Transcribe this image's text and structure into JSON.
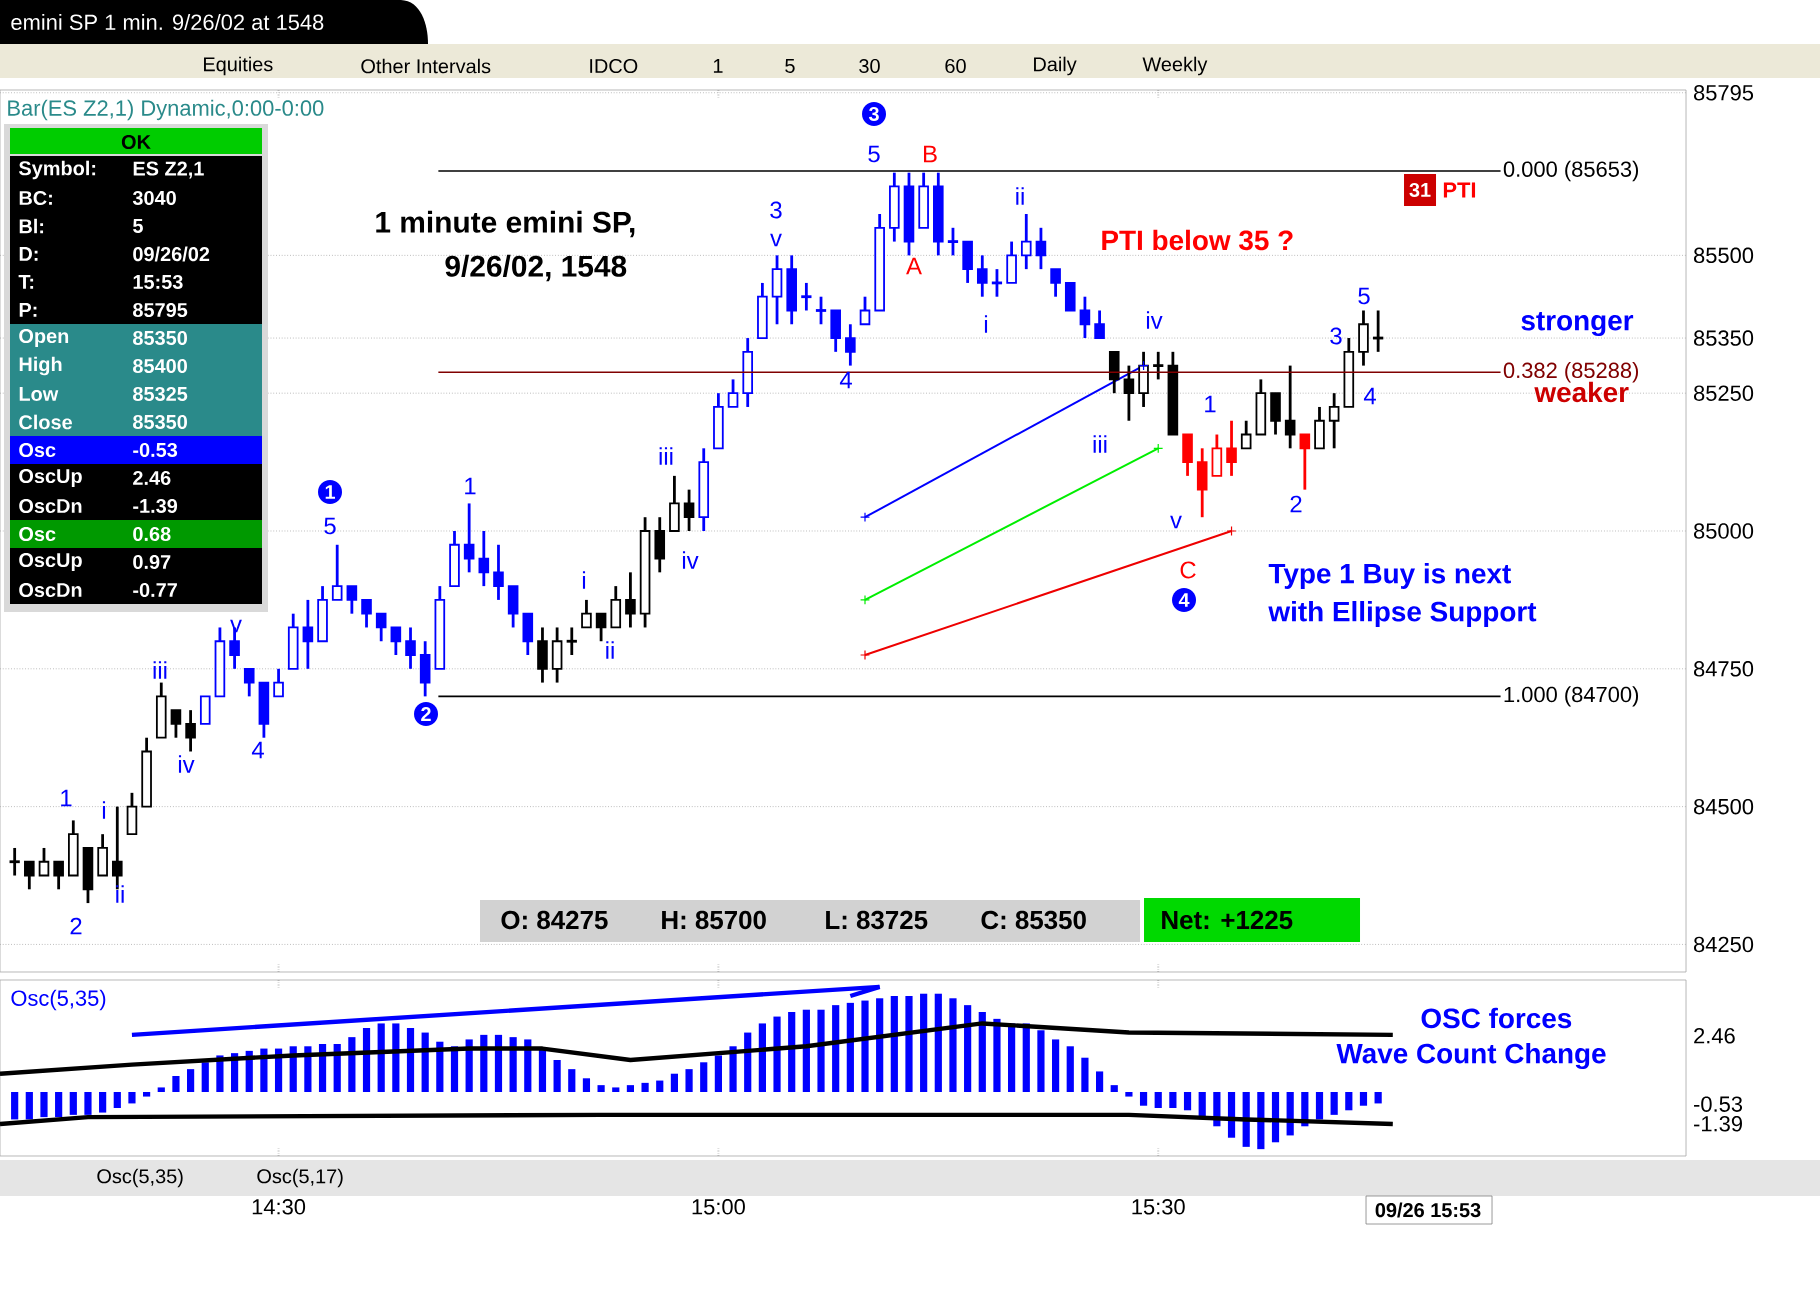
{
  "chart_data": [
    {
      "type": "candlestick",
      "title": "emini SP 1 min. 9/26/02 at 1548",
      "subtitle": "Bar(ES Z2,1) Dynamic,0:00-0:00",
      "x": [
        "--09-26T14:12",
        "--09-26T14:13",
        "--09-26T14:14",
        "--09-26T14:15",
        "--09-26T14:16",
        "--09-26T14:17",
        "--09-26T14:18",
        "--09-26T14:19",
        "--09-26T14:20",
        "--09-26T14:21",
        "--09-26T14:22",
        "--09-26T14:23",
        "--09-26T14:24",
        "--09-26T14:25",
        "--09-26T14:26",
        "--09-26T14:27",
        "--09-26T14:28",
        "--09-26T14:29",
        "--09-26T14:30",
        "--09-26T14:31",
        "--09-26T14:32",
        "--09-26T14:33",
        "--09-26T14:34",
        "--09-26T14:35",
        "--09-26T14:36",
        "--09-26T14:37",
        "--09-26T14:38",
        "--09-26T14:39",
        "--09-26T14:40",
        "--09-26T14:41",
        "--09-26T14:42",
        "--09-26T14:43",
        "--09-26T14:44",
        "--09-26T14:45",
        "--09-26T14:46",
        "--09-26T14:47",
        "--09-26T14:48",
        "--09-26T14:49",
        "--09-26T14:50",
        "--09-26T14:51",
        "--09-26T14:52",
        "--09-26T14:53",
        "--09-26T14:54",
        "--09-26T14:55",
        "--09-26T14:56",
        "--09-26T14:57",
        "--09-26T14:58",
        "--09-26T14:59",
        "--09-26T15:00",
        "--09-26T15:01",
        "--09-26T15:02",
        "--09-26T15:03",
        "--09-26T15:04",
        "--09-26T15:05",
        "--09-26T15:06",
        "--09-26T15:07",
        "--09-26T15:08",
        "--09-26T15:09",
        "--09-26T15:10",
        "--09-26T15:11",
        "--09-26T15:12",
        "--09-26T15:13",
        "--09-26T15:14",
        "--09-26T15:15",
        "--09-26T15:16",
        "--09-26T15:17",
        "--09-26T15:18",
        "--09-26T15:19",
        "--09-26T15:20",
        "--09-26T15:21",
        "--09-26T15:22",
        "--09-26T15:23",
        "--09-26T15:24",
        "--09-26T15:25",
        "--09-26T15:26",
        "--09-26T15:27",
        "--09-26T15:28",
        "--09-26T15:29",
        "--09-26T15:30",
        "--09-26T15:31",
        "--09-26T15:32",
        "--09-26T15:33",
        "--09-26T15:34",
        "--09-26T15:35",
        "--09-26T15:36",
        "--09-26T15:37",
        "--09-26T15:38",
        "--09-26T15:39",
        "--09-26T15:40",
        "--09-26T15:41",
        "--09-26T15:42",
        "--09-26T15:43",
        "--09-26T15:44",
        "--09-26T15:45"
      ],
      "ohlc": [
        [
          84400,
          84425,
          84375,
          84400
        ],
        [
          84400,
          84400,
          84350,
          84375
        ],
        [
          84375,
          84425,
          84375,
          84400
        ],
        [
          84400,
          84400,
          84350,
          84375
        ],
        [
          84375,
          84475,
          84375,
          84450
        ],
        [
          84425,
          84425,
          84325,
          84350
        ],
        [
          84375,
          84450,
          84375,
          84425
        ],
        [
          84400,
          84500,
          84350,
          84375
        ],
        [
          84450,
          84525,
          84450,
          84500
        ],
        [
          84500,
          84625,
          84500,
          84600
        ],
        [
          84625,
          84725,
          84625,
          84700
        ],
        [
          84675,
          84675,
          84625,
          84650
        ],
        [
          84650,
          84675,
          84600,
          84625
        ],
        [
          84650,
          84700,
          84650,
          84700
        ],
        [
          84700,
          84825,
          84700,
          84800
        ],
        [
          84800,
          84825,
          84750,
          84775
        ],
        [
          84750,
          84750,
          84700,
          84725
        ],
        [
          84725,
          84725,
          84625,
          84650
        ],
        [
          84700,
          84750,
          84700,
          84725
        ],
        [
          84750,
          84850,
          84750,
          84825
        ],
        [
          84825,
          84875,
          84750,
          84800
        ],
        [
          84800,
          84900,
          84800,
          84875
        ],
        [
          84875,
          84975,
          84875,
          84900
        ],
        [
          84900,
          84900,
          84850,
          84875
        ],
        [
          84875,
          84875,
          84825,
          84850
        ],
        [
          84850,
          84850,
          84800,
          84825
        ],
        [
          84825,
          84825,
          84775,
          84800
        ],
        [
          84800,
          84825,
          84750,
          84775
        ],
        [
          84775,
          84800,
          84700,
          84725
        ],
        [
          84750,
          84900,
          84750,
          84875
        ],
        [
          84900,
          85000,
          84900,
          84975
        ],
        [
          84975,
          85050,
          84925,
          84950
        ],
        [
          84950,
          85000,
          84900,
          84925
        ],
        [
          84925,
          84975,
          84875,
          84900
        ],
        [
          84900,
          84900,
          84825,
          84850
        ],
        [
          84850,
          84850,
          84775,
          84800
        ],
        [
          84800,
          84825,
          84725,
          84750
        ],
        [
          84750,
          84825,
          84725,
          84800
        ],
        [
          84800,
          84825,
          84775,
          84800
        ],
        [
          84825,
          84875,
          84825,
          84850
        ],
        [
          84850,
          84850,
          84800,
          84825
        ],
        [
          84825,
          84900,
          84825,
          84875
        ],
        [
          84875,
          84925,
          84825,
          84850
        ],
        [
          84850,
          85025,
          84825,
          85000
        ],
        [
          85000,
          85025,
          84925,
          84950
        ],
        [
          85000,
          85100,
          85000,
          85050
        ],
        [
          85050,
          85075,
          85000,
          85025
        ],
        [
          85025,
          85150,
          85000,
          85125
        ],
        [
          85150,
          85250,
          85150,
          85225
        ],
        [
          85225,
          85275,
          85225,
          85250
        ],
        [
          85250,
          85350,
          85225,
          85325
        ],
        [
          85350,
          85450,
          85350,
          85425
        ],
        [
          85425,
          85500,
          85375,
          85475
        ],
        [
          85475,
          85500,
          85375,
          85400
        ],
        [
          85425,
          85450,
          85400,
          85425
        ],
        [
          85400,
          85425,
          85375,
          85400
        ],
        [
          85400,
          85400,
          85325,
          85350
        ],
        [
          85350,
          85375,
          85300,
          85325
        ],
        [
          85375,
          85425,
          85375,
          85400
        ],
        [
          85400,
          85575,
          85400,
          85550
        ],
        [
          85550,
          85650,
          85525,
          85625
        ],
        [
          85625,
          85650,
          85500,
          85525
        ],
        [
          85550,
          85650,
          85550,
          85625
        ],
        [
          85625,
          85650,
          85500,
          85525
        ],
        [
          85525,
          85550,
          85500,
          85525
        ],
        [
          85525,
          85525,
          85450,
          85475
        ],
        [
          85475,
          85500,
          85425,
          85450
        ],
        [
          85450,
          85475,
          85425,
          85450
        ],
        [
          85450,
          85525,
          85450,
          85500
        ],
        [
          85500,
          85575,
          85475,
          85525
        ],
        [
          85525,
          85550,
          85475,
          85500
        ],
        [
          85475,
          85475,
          85425,
          85450
        ],
        [
          85450,
          85450,
          85400,
          85400
        ],
        [
          85400,
          85425,
          85350,
          85375
        ],
        [
          85375,
          85400,
          85350,
          85350
        ],
        [
          85325,
          85325,
          85250,
          85275
        ],
        [
          85275,
          85300,
          85200,
          85250
        ],
        [
          85250,
          85325,
          85225,
          85300
        ],
        [
          85300,
          85325,
          85275,
          85300
        ],
        [
          85300,
          85325,
          85175,
          85175
        ],
        [
          85175,
          85175,
          85100,
          85125
        ],
        [
          85125,
          85150,
          85025,
          85075
        ],
        [
          85100,
          85175,
          85100,
          85150
        ],
        [
          85150,
          85200,
          85100,
          85125
        ],
        [
          85150,
          85200,
          85150,
          85175
        ],
        [
          85175,
          85275,
          85175,
          85250
        ],
        [
          85250,
          85250,
          85175,
          85200
        ],
        [
          85200,
          85300,
          85150,
          85175
        ],
        [
          85175,
          85175,
          85075,
          85150
        ],
        [
          85150,
          85225,
          85150,
          85200
        ],
        [
          85200,
          85250,
          85150,
          85225
        ],
        [
          85225,
          85350,
          85225,
          85325
        ],
        [
          85325,
          85400,
          85300,
          85375
        ],
        [
          85350,
          85400,
          85325,
          85350
        ]
      ],
      "colors": [
        "#000000",
        "#000000",
        "#000000",
        "#000000",
        "#000000",
        "#000000",
        "#000000",
        "#000000",
        "#000000",
        "#000000",
        "#000000",
        "#000000",
        "#000000",
        "#0000ff",
        "#0000ff",
        "#0000ff",
        "#0000ff",
        "#0000ff",
        "#0000ff",
        "#0000ff",
        "#0000ff",
        "#0000ff",
        "#0000ff",
        "#0000ff",
        "#0000ff",
        "#0000ff",
        "#0000ff",
        "#0000ff",
        "#0000ff",
        "#0000ff",
        "#0000ff",
        "#0000ff",
        "#0000ff",
        "#0000ff",
        "#0000ff",
        "#0000ff",
        "#000000",
        "#000000",
        "#000000",
        "#000000",
        "#000000",
        "#000000",
        "#000000",
        "#000000",
        "#000000",
        "#000000",
        "#000000",
        "#0000ff",
        "#0000ff",
        "#0000ff",
        "#0000ff",
        "#0000ff",
        "#0000ff",
        "#0000ff",
        "#0000ff",
        "#0000ff",
        "#0000ff",
        "#0000ff",
        "#0000ff",
        "#0000ff",
        "#0000ff",
        "#0000ff",
        "#0000ff",
        "#0000ff",
        "#0000ff",
        "#0000ff",
        "#0000ff",
        "#0000ff",
        "#0000ff",
        "#0000ff",
        "#0000ff",
        "#0000ff",
        "#0000ff",
        "#0000ff",
        "#0000ff",
        "#000000",
        "#000000",
        "#000000",
        "#000000",
        "#000000",
        "#ff0000",
        "#ff0000",
        "#ff0000",
        "#ff0000",
        "#000000",
        "#000000",
        "#000000",
        "#000000",
        "#ff0000",
        "#000000",
        "#000000",
        "#000000",
        "#000000",
        "#000000"
      ],
      "series": [
        {
          "type": "line",
          "color": "#0000ff",
          "marker": "cross",
          "x": [
            "--09-26T15:10",
            "--09-26T15:29"
          ],
          "values": [
            85025,
            85300
          ]
        },
        {
          "type": "line",
          "color": "#00ee00",
          "marker": "cross",
          "x": [
            "--09-26T15:10",
            "--09-26T15:30"
          ],
          "values": [
            84875,
            85150
          ]
        },
        {
          "type": "line",
          "color": "#ee0000",
          "marker": "cross",
          "x": [
            "--09-26T15:10",
            "--09-26T15:35"
          ],
          "values": [
            84775,
            85000
          ]
        }
      ],
      "xlim": [
        "--09-26T14:11",
        "--09-26T16:06"
      ],
      "ylim": [
        84200,
        85800
      ],
      "xticks": [
        "--09-26T14:30",
        "--09-26T15:00",
        "--09-26T15:30"
      ],
      "yticks": [
        84250,
        84500,
        84750,
        85000,
        85250,
        85350,
        85500,
        85795
      ],
      "tick_labels": "y",
      "grid": "y",
      "ref_lines": [
        {
          "axis": "y",
          "value": 85653,
          "label": "0.000 (85653)",
          "color": "#000000"
        },
        {
          "axis": "y",
          "value": 85288,
          "label": "0.382 (85288)",
          "color": "#800000"
        },
        {
          "axis": "y",
          "value": 84700,
          "label": "1.000 (84700)",
          "color": "#000000"
        }
      ],
      "annotations": [
        "1",
        "2",
        "i",
        "ii",
        "iii",
        "iv",
        "v",
        "4",
        "5",
        "1",
        "2",
        "1",
        "i",
        "ii",
        "iii",
        "iv",
        "3",
        "v",
        "4",
        "3",
        "5",
        "B",
        "A",
        "i",
        "ii",
        "iii",
        "iv",
        "v",
        "C",
        "4",
        "1",
        "2",
        "3",
        "4",
        "5",
        "1 minute emini SP,",
        "9/26/02,  1548",
        "PTI below 35 ?",
        "31",
        "PTI",
        "stronger",
        "weaker",
        "Type 1 Buy is next",
        "with Ellipse Support",
        "O: 84275",
        "H: 85700",
        "L: 83725",
        "C: 85350",
        "Net: +1225",
        "OK",
        "Symbol:",
        "ES Z2,1",
        "BC:",
        "3040",
        "Bl:",
        "5",
        "D:",
        "09/26/02",
        "T:",
        "15:53",
        "P:",
        "85795",
        "Open",
        "85350",
        "High",
        "85400",
        "Low",
        "85325",
        "Close",
        "85350",
        "Osc",
        "-0.53",
        "OscUp",
        "2.46",
        "OscDn",
        "-1.39",
        "Osc",
        "0.68",
        "OscUp",
        "0.97",
        "OscDn",
        "-0.77",
        "Equities",
        "Other Intervals",
        "IDCO",
        "1",
        "5",
        "30",
        "60",
        "Daily",
        "Weekly"
      ]
    },
    {
      "type": "bar",
      "title": "Osc(5,35)",
      "x": [
        "--09-26T14:12",
        "--09-26T14:13",
        "--09-26T14:14",
        "--09-26T14:15",
        "--09-26T14:16",
        "--09-26T14:17",
        "--09-26T14:18",
        "--09-26T14:19",
        "--09-26T14:20",
        "--09-26T14:21",
        "--09-26T14:22",
        "--09-26T14:23",
        "--09-26T14:24",
        "--09-26T14:25",
        "--09-26T14:26",
        "--09-26T14:27",
        "--09-26T14:28",
        "--09-26T14:29",
        "--09-26T14:30",
        "--09-26T14:31",
        "--09-26T14:32",
        "--09-26T14:33",
        "--09-26T14:34",
        "--09-26T14:35",
        "--09-26T14:36",
        "--09-26T14:37",
        "--09-26T14:38",
        "--09-26T14:39",
        "--09-26T14:40",
        "--09-26T14:41",
        "--09-26T14:42",
        "--09-26T14:43",
        "--09-26T14:44",
        "--09-26T14:45",
        "--09-26T14:46",
        "--09-26T14:47",
        "--09-26T14:48",
        "--09-26T14:49",
        "--09-26T14:50",
        "--09-26T14:51",
        "--09-26T14:52",
        "--09-26T14:53",
        "--09-26T14:54",
        "--09-26T14:55",
        "--09-26T14:56",
        "--09-26T14:57",
        "--09-26T14:58",
        "--09-26T14:59",
        "--09-26T15:00",
        "--09-26T15:01",
        "--09-26T15:02",
        "--09-26T15:03",
        "--09-26T15:04",
        "--09-26T15:05",
        "--09-26T15:06",
        "--09-26T15:07",
        "--09-26T15:08",
        "--09-26T15:09",
        "--09-26T15:10",
        "--09-26T15:11",
        "--09-26T15:12",
        "--09-26T15:13",
        "--09-26T15:14",
        "--09-26T15:15",
        "--09-26T15:16",
        "--09-26T15:17",
        "--09-26T15:18",
        "--09-26T15:19",
        "--09-26T15:20",
        "--09-26T15:21",
        "--09-26T15:22",
        "--09-26T15:23",
        "--09-26T15:24",
        "--09-26T15:25",
        "--09-26T15:26",
        "--09-26T15:27",
        "--09-26T15:28",
        "--09-26T15:29",
        "--09-26T15:30",
        "--09-26T15:31",
        "--09-26T15:32",
        "--09-26T15:33",
        "--09-26T15:34",
        "--09-26T15:35",
        "--09-26T15:36",
        "--09-26T15:37",
        "--09-26T15:38",
        "--09-26T15:39",
        "--09-26T15:40",
        "--09-26T15:41",
        "--09-26T15:42",
        "--09-26T15:43",
        "--09-26T15:44",
        "--09-26T15:45"
      ],
      "series": [
        {
          "color": "#0000ff",
          "values": [
            -1.2,
            -1.2,
            -1.1,
            -1.1,
            -1.0,
            -1.0,
            -0.9,
            -0.7,
            -0.5,
            -0.2,
            0.2,
            0.7,
            1.0,
            1.3,
            1.6,
            1.7,
            1.8,
            1.9,
            1.9,
            2.0,
            2.0,
            2.1,
            2.1,
            2.4,
            2.8,
            3.0,
            3.0,
            2.8,
            2.6,
            2.2,
            2.0,
            2.3,
            2.5,
            2.5,
            2.4,
            2.3,
            1.9,
            1.4,
            1.0,
            0.6,
            0.3,
            0.2,
            0.3,
            0.4,
            0.5,
            0.8,
            1.0,
            1.3,
            1.6,
            2.0,
            2.6,
            3.0,
            3.3,
            3.5,
            3.6,
            3.6,
            3.8,
            3.9,
            4.0,
            4.1,
            4.2,
            4.2,
            4.3,
            4.3,
            4.1,
            3.8,
            3.5,
            3.2,
            3.0,
            3.0,
            2.7,
            2.3,
            2.0,
            1.5,
            0.9,
            0.3,
            -0.2,
            -0.6,
            -0.7,
            -0.7,
            -0.8,
            -1.1,
            -1.5,
            -2.0,
            -2.4,
            -2.5,
            -2.2,
            -1.9,
            -1.5,
            -1.2,
            -1.0,
            -0.8,
            -0.6,
            -0.5
          ]
        },
        {
          "type": "line",
          "color": "#000000",
          "x": [
            "--09-26T14:11",
            "--09-26T14:20",
            "--09-26T14:31",
            "--09-26T14:43",
            "--09-26T14:48",
            "--09-26T14:54",
            "--09-26T15:06",
            "--09-26T15:18",
            "--09-26T15:28",
            "--09-26T15:46"
          ],
          "values": [
            0.8,
            1.2,
            1.6,
            1.9,
            1.9,
            1.4,
            2.0,
            3.0,
            2.6,
            2.5
          ]
        },
        {
          "type": "line",
          "color": "#000000",
          "x": [
            "--09-26T14:11",
            "--09-26T14:17",
            "--09-26T14:52",
            "--09-26T15:28",
            "--09-26T15:36",
            "--09-26T15:46"
          ],
          "values": [
            -1.4,
            -1.1,
            -1.0,
            -1.0,
            -1.2,
            -1.4
          ]
        },
        {
          "type": "line",
          "color": "#0000ff",
          "x": [
            "--09-26T14:20",
            "--09-26T15:11"
          ],
          "values": [
            2.5,
            4.6
          ]
        },
        {
          "type": "line",
          "color": "#0000ff",
          "x": [
            "--09-26T15:09",
            "--09-26T15:11"
          ],
          "values": [
            4.2,
            4.6
          ]
        }
      ],
      "xlim": [
        "--09-26T14:11",
        "--09-26T16:06"
      ],
      "ylim": [
        -2.8,
        4.9
      ],
      "xticks": [
        {
          "value": "--09-26T14:30",
          "label": "14:30"
        },
        {
          "value": "--09-26T15:00",
          "label": "15:00"
        },
        {
          "value": "--09-26T15:30",
          "label": "15:30"
        }
      ],
      "yticks": [
        -1.39,
        -0.53,
        2.46
      ],
      "annotations": [
        "OSC forces",
        "Wave Count Change",
        "Osc(5,35)",
        "Osc(5,17)",
        "09/26 15:53"
      ]
    }
  ]
}
